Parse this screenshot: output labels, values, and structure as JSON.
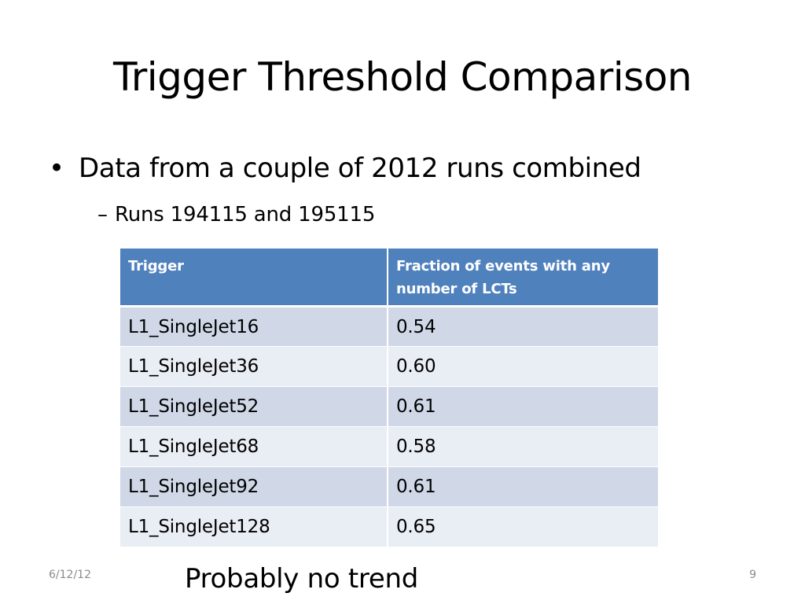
{
  "slide": {
    "title": "Trigger Threshold Comparison",
    "bullet_symbol": "•",
    "bullet": "Data from a couple of 2012 runs combined",
    "sub_bullet_symbol": "–",
    "sub_bullet": "Runs 194115 and 195115",
    "note": "Probably no trend",
    "footer_date": "6/12/12",
    "page_number": "9"
  },
  "table": {
    "headers": [
      "Trigger",
      "Fraction of events with any number of LCTs"
    ],
    "rows": [
      {
        "trigger": "L1_SingleJet16",
        "fraction": "0.54"
      },
      {
        "trigger": "L1_SingleJet36",
        "fraction": "0.60"
      },
      {
        "trigger": "L1_SingleJet52",
        "fraction": "0.61"
      },
      {
        "trigger": "L1_SingleJet68",
        "fraction": "0.58"
      },
      {
        "trigger": "L1_SingleJet92",
        "fraction": "0.61"
      },
      {
        "trigger": "L1_SingleJet128",
        "fraction": "0.65"
      }
    ]
  },
  "colors": {
    "header_background": "#4f81bd",
    "row_band_dark": "#d0d8e8",
    "row_band_light": "#e9edf4",
    "footer_text": "#8b8b8b"
  }
}
